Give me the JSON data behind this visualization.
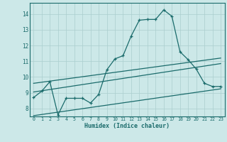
{
  "xlabel": "Humidex (Indice chaleur)",
  "bg_color": "#cce8e8",
  "grid_color": "#aacece",
  "line_color": "#1a6b6b",
  "xlim": [
    -0.5,
    23.5
  ],
  "ylim": [
    7.5,
    14.7
  ],
  "xtick_vals": [
    0,
    1,
    2,
    3,
    4,
    5,
    6,
    7,
    8,
    9,
    10,
    11,
    12,
    13,
    14,
    15,
    16,
    17,
    18,
    19,
    20,
    21,
    22,
    23
  ],
  "xtick_labels": [
    "0",
    "1",
    "2",
    "3",
    "4",
    "5",
    "6",
    "7",
    "8",
    "9",
    "10",
    "11",
    "12",
    "13",
    "14",
    "15",
    "16",
    "17",
    "18",
    "19",
    "20",
    "21",
    "22",
    "23"
  ],
  "ytick_vals": [
    8,
    9,
    10,
    11,
    12,
    13,
    14
  ],
  "ytick_labels": [
    "8",
    "9",
    "10",
    "11",
    "12",
    "13",
    "14"
  ],
  "main_line_x": [
    0,
    1,
    2,
    3,
    4,
    5,
    6,
    7,
    8,
    9,
    10,
    11,
    12,
    13,
    14,
    15,
    16,
    17,
    18,
    19,
    20,
    21,
    22,
    23
  ],
  "main_line_y": [
    8.7,
    9.1,
    9.7,
    7.6,
    8.65,
    8.65,
    8.65,
    8.35,
    8.9,
    10.45,
    11.15,
    11.35,
    12.6,
    13.6,
    13.65,
    13.65,
    14.25,
    13.85,
    11.6,
    11.1,
    10.5,
    9.6,
    9.4,
    9.4
  ],
  "upper_line_x": [
    0,
    23
  ],
  "upper_line_y": [
    9.6,
    11.2
  ],
  "lower_line_x": [
    0,
    23
  ],
  "lower_line_y": [
    7.55,
    9.25
  ],
  "mid_line_x": [
    0,
    23
  ],
  "mid_line_y": [
    9.05,
    10.85
  ]
}
